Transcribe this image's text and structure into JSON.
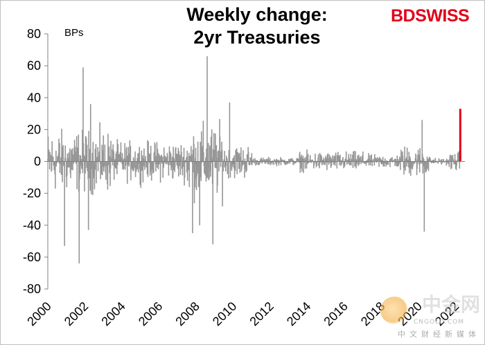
{
  "title": {
    "line1": "Weekly change:",
    "line2": "2yr Treasuries"
  },
  "brand": {
    "part1": "BD",
    "part2": "SWISS",
    "color": "#e1001a"
  },
  "watermark": {
    "main": "中金网",
    "url": "CNGOLD.COM",
    "sub": "中文财经新媒体"
  },
  "colors": {
    "bars": "#969696",
    "latest": "#e1001a",
    "axis": "#808080"
  },
  "chart_data": {
    "type": "bar",
    "unit_label": "BPs",
    "ylim": [
      -80,
      80
    ],
    "yticks": [
      80,
      60,
      40,
      20,
      0,
      -20,
      -40,
      -60,
      -80
    ],
    "xlim": [
      2000,
      2022.5
    ],
    "xticks": [
      "2000",
      "2002",
      "2004",
      "2006",
      "2008",
      "2010",
      "2012",
      "2014",
      "2016",
      "2018",
      "2020",
      "2022"
    ],
    "grid": false,
    "legend": "none",
    "notable_points": [
      {
        "x": 2000.9,
        "y": -53
      },
      {
        "x": 2001.7,
        "y": -64
      },
      {
        "x": 2001.9,
        "y": 59
      },
      {
        "x": 2002.2,
        "y": -43
      },
      {
        "x": 2002.3,
        "y": 36
      },
      {
        "x": 2007.8,
        "y": -45
      },
      {
        "x": 2008.2,
        "y": -40
      },
      {
        "x": 2008.6,
        "y": 66
      },
      {
        "x": 2008.9,
        "y": -52
      },
      {
        "x": 2009.8,
        "y": 37
      },
      {
        "x": 2020.2,
        "y": 26
      },
      {
        "x": 2020.3,
        "y": -44
      },
      {
        "x": 2022.25,
        "y": 33
      }
    ],
    "volatility_profile": [
      {
        "from": 2000.0,
        "to": 2003.5,
        "amp": 22
      },
      {
        "from": 2003.5,
        "to": 2007.5,
        "amp": 14
      },
      {
        "from": 2007.5,
        "to": 2009.5,
        "amp": 26
      },
      {
        "from": 2009.5,
        "to": 2011.0,
        "amp": 12
      },
      {
        "from": 2011.0,
        "to": 2013.5,
        "amp": 3
      },
      {
        "from": 2013.5,
        "to": 2017.0,
        "amp": 7
      },
      {
        "from": 2017.0,
        "to": 2019.0,
        "amp": 5
      },
      {
        "from": 2019.0,
        "to": 2020.6,
        "amp": 11
      },
      {
        "from": 2020.6,
        "to": 2021.6,
        "amp": 2.5
      },
      {
        "from": 2021.6,
        "to": 2022.3,
        "amp": 7
      }
    ],
    "latest": {
      "x": 2022.25,
      "y": 33
    }
  }
}
